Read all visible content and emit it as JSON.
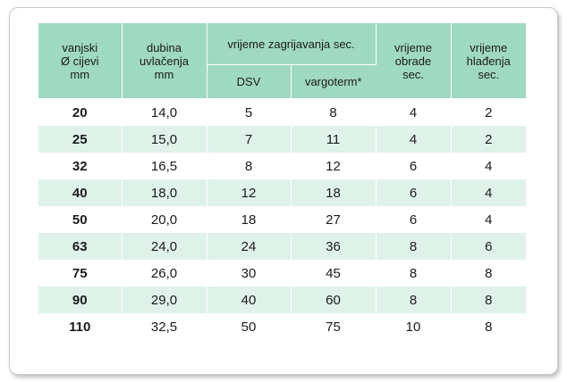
{
  "headers": {
    "outer_diameter": "vanjski\nØ cijevi\nmm",
    "depth": "dubina\nuvlačenja\nmm",
    "heating_group": "vrijeme zagrijavanja sec.",
    "dsv": "DSV",
    "vargoterm": "vargoterm*",
    "processing": "vrijeme\nobrade\nsec.",
    "cooling": "vrijeme\nhlađenja\nsec."
  },
  "rows": [
    [
      "20",
      "14,0",
      "5",
      "8",
      "4",
      "2"
    ],
    [
      "25",
      "15,0",
      "7",
      "11",
      "4",
      "2"
    ],
    [
      "32",
      "16,5",
      "8",
      "12",
      "6",
      "4"
    ],
    [
      "40",
      "18,0",
      "12",
      "18",
      "6",
      "4"
    ],
    [
      "50",
      "20,0",
      "18",
      "27",
      "6",
      "4"
    ],
    [
      "63",
      "24,0",
      "24",
      "36",
      "8",
      "6"
    ],
    [
      "75",
      "26,0",
      "30",
      "45",
      "8",
      "8"
    ],
    [
      "90",
      "29,0",
      "40",
      "60",
      "8",
      "8"
    ],
    [
      "110",
      "32,5",
      "50",
      "75",
      "10",
      "8"
    ]
  ],
  "colors": {
    "header_bg": "#9fd9c2",
    "stripe_bg": "#dff2ea"
  }
}
